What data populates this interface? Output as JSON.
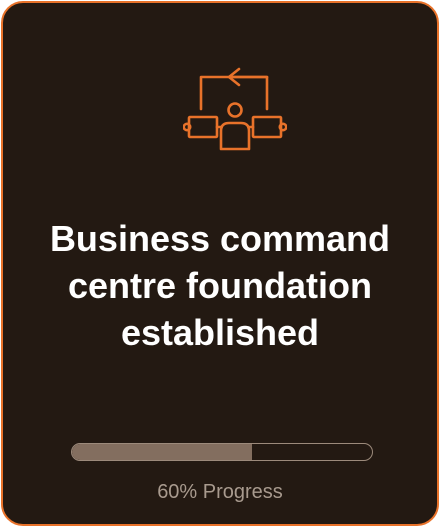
{
  "card": {
    "icon": "workflow-person-icon",
    "title_lines": [
      "Business command",
      "centre foundation",
      "established"
    ],
    "progress": {
      "percent": 60,
      "label": "60% Progress"
    }
  },
  "colors": {
    "background": "#231912",
    "accent": "#e8722a",
    "title_text": "#ffffff",
    "progress_fill": "#836e5f",
    "progress_border": "#9c8a7b",
    "label_text": "#a89a8e"
  }
}
